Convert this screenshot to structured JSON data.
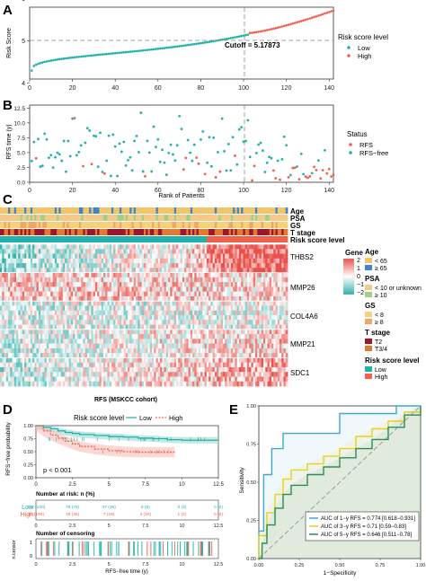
{
  "colors": {
    "low": "#20B2AA",
    "high": "#F0604D",
    "cutoff_line": "#888888",
    "heat_low": "#2EAFA9",
    "heat_mid": "#FFFFFF",
    "heat_high": "#E8514B",
    "age_lt65": "#F2C56B",
    "age_ge65": "#3B87C8",
    "psa_le10": "#F4C98A",
    "psa_ge10": "#9BD18B",
    "gs_le8": "#F3D27A",
    "gs_ge8": "#F0A66A",
    "t2": "#A0142C",
    "t34": "#E27A2C",
    "auc1": "#3FA7D6",
    "auc3": "#E8D21A",
    "auc5": "#2E8B57",
    "km_low_band": "#9ED8D4",
    "km_high_band": "#F5B8B0"
  },
  "panelA": {
    "letter": "A",
    "ylabel": "Risk Score",
    "xticks": [
      "0",
      "20",
      "40",
      "60",
      "80",
      "100",
      "120",
      "140"
    ],
    "yticks": [
      "4",
      "5",
      "6"
    ],
    "cutoff_label": "Cutoff = 5.17873",
    "legend_title": "Risk score level",
    "legend_items": [
      "Low",
      "High"
    ]
  },
  "panelB": {
    "letter": "B",
    "ylabel": "RFS time (y)",
    "xlabel": "Rank of Patients",
    "xticks": [
      "0",
      "20",
      "40",
      "60",
      "80",
      "100",
      "120",
      "140"
    ],
    "yticks": [
      "0.0",
      "2.5",
      "5.0",
      "7.5",
      "10.0",
      "12.5"
    ],
    "legend_title": "Status",
    "legend_items": [
      "RFS",
      "RFS−free"
    ]
  },
  "panelC": {
    "letter": "C",
    "annotation_rows": [
      "Age",
      "PSA",
      "GS",
      "T stage",
      "Risk score level"
    ],
    "genes": [
      "THBS2",
      "MMP26",
      "COL4A6",
      "MMP21",
      "SDC1"
    ],
    "scale_title": "Gene",
    "scale_ticks": [
      "2",
      "1",
      "0",
      "−1",
      "−2"
    ],
    "legends": [
      {
        "title": "Age",
        "items": [
          "< 65",
          "≥ 65"
        ]
      },
      {
        "title": "PSA",
        "items": [
          "< 10 or unknown",
          "≥ 10"
        ]
      },
      {
        "title": "GS",
        "items": [
          "< 8",
          "≥ 8"
        ]
      },
      {
        "title": "T stage",
        "items": [
          "T2",
          "T3/4"
        ]
      },
      {
        "title": "Risk score level",
        "items": [
          "Low",
          "High"
        ]
      }
    ]
  },
  "panelD": {
    "letter": "D",
    "title": "RFS (MSKCC cohort)",
    "legend_title": "Risk score level",
    "legend_items": [
      "Low",
      "High"
    ],
    "ylabel": "RFS−free probability",
    "pvalue": "p < 0.001",
    "xticks": [
      "0",
      "2.5",
      "5",
      "7.5",
      "10",
      "12.5"
    ],
    "yticks": [
      "0.00",
      "0.25",
      "0.50",
      "0.75",
      "1.00"
    ],
    "risk_title": "Number at risk: n (%)",
    "risk_rows": [
      {
        "label": "Low",
        "cells": [
          "102 (100)",
          "76 (75)",
          "37 (36)",
          "8 (8)",
          "3 (3)",
          "0 (0)"
        ]
      },
      {
        "label": "High",
        "cells": [
          "40 (100)",
          "18 (45)",
          "7 (18)",
          "4 (10)",
          "1 (2)",
          "0 (0)"
        ]
      }
    ],
    "censor_title": "Number of censoring",
    "censor_ylabel": "n.censor",
    "censor_yticks": [
      "1",
      "0"
    ],
    "xlabel": "RFS−free time (y)"
  },
  "panelE": {
    "letter": "E",
    "xlabel": "1−Specificity",
    "ylabel": "Sensitivity",
    "ticks": [
      "0.00",
      "0.25",
      "0.50",
      "0.75",
      "1.00"
    ],
    "legend": [
      "AUC of 1−y RFS = 0.774 [0.618−0.931]",
      "AUC of 3−y RFS = 0.71 [0.59−0.83]",
      "AUC of 5−y RFS = 0.646 [0.511−0.78]"
    ]
  },
  "chart_data": [
    {
      "type": "scatter",
      "title": "",
      "ylabel": "Risk Score",
      "xlim": [
        0,
        142
      ],
      "ylim": [
        4.1,
        5.8
      ],
      "cutoff": 5.17873,
      "low_count": 102,
      "high_count": 40,
      "risk_low_start": 4.3,
      "risk_low_end": 5.15,
      "risk_high_start": 5.19,
      "risk_high_end": 5.72
    },
    {
      "type": "scatter",
      "title": "",
      "xlabel": "Rank of Patients",
      "ylabel": "RFS time (y)",
      "xlim": [
        0,
        142
      ],
      "ylim": [
        0,
        13
      ],
      "series": [
        {
          "name": "RFS"
        },
        {
          "name": "RFS−free"
        }
      ]
    },
    {
      "type": "heatmap",
      "rows": [
        "THBS2",
        "MMP26",
        "COL4A6",
        "MMP21",
        "SDC1"
      ],
      "n_patients": 142,
      "value_range": [
        -2,
        2
      ]
    },
    {
      "type": "line",
      "title": "RFS (MSKCC cohort)",
      "xlabel": "RFS−free time (y)",
      "ylabel": "RFS−free probability",
      "xlim": [
        0,
        12.5
      ],
      "ylim": [
        0,
        1
      ],
      "series": [
        {
          "name": "Low",
          "x": [
            0,
            0.5,
            1,
            1.5,
            2,
            2.5,
            3,
            4,
            5,
            6,
            7,
            8,
            9,
            10,
            12.5
          ],
          "y": [
            1,
            0.97,
            0.94,
            0.9,
            0.87,
            0.85,
            0.83,
            0.81,
            0.79,
            0.78,
            0.76,
            0.75,
            0.73,
            0.72,
            0.72
          ]
        },
        {
          "name": "High",
          "x": [
            0,
            0.5,
            1,
            1.5,
            2,
            2.5,
            3,
            4,
            5,
            6,
            7,
            8,
            9,
            9.5
          ],
          "y": [
            1,
            0.9,
            0.82,
            0.76,
            0.7,
            0.65,
            0.6,
            0.55,
            0.52,
            0.5,
            0.49,
            0.49,
            0.49,
            0.49
          ]
        }
      ]
    },
    {
      "type": "line",
      "xlabel": "1−Specificity",
      "ylabel": "Sensitivity",
      "xlim": [
        0,
        1
      ],
      "ylim": [
        0,
        1
      ],
      "series": [
        {
          "name": "AUC of 1−y RFS = 0.774 [0.618−0.931]",
          "x": [
            0,
            0,
            0.03,
            0.03,
            0.08,
            0.08,
            0.15,
            0.15,
            0.25,
            0.25,
            0.5,
            0.5,
            0.85,
            0.85,
            1
          ],
          "y": [
            0,
            0.18,
            0.18,
            0.55,
            0.55,
            0.72,
            0.72,
            0.82,
            0.82,
            0.82,
            0.82,
            0.95,
            0.95,
            1,
            1
          ]
        },
        {
          "name": "AUC of 3−y RFS = 0.71 [0.59−0.83]",
          "x": [
            0,
            0,
            0.05,
            0.1,
            0.15,
            0.2,
            0.3,
            0.4,
            0.5,
            0.6,
            0.7,
            0.8,
            0.9,
            1
          ],
          "y": [
            0,
            0.15,
            0.3,
            0.42,
            0.52,
            0.58,
            0.62,
            0.67,
            0.72,
            0.8,
            0.85,
            0.9,
            0.96,
            1
          ]
        },
        {
          "name": "AUC of 5−y RFS = 0.646 [0.511−0.78]",
          "x": [
            0,
            0.02,
            0.05,
            0.1,
            0.15,
            0.2,
            0.3,
            0.4,
            0.5,
            0.6,
            0.7,
            0.8,
            0.9,
            1
          ],
          "y": [
            0,
            0.1,
            0.22,
            0.33,
            0.42,
            0.48,
            0.55,
            0.6,
            0.66,
            0.72,
            0.78,
            0.86,
            0.94,
            1
          ]
        }
      ]
    }
  ]
}
